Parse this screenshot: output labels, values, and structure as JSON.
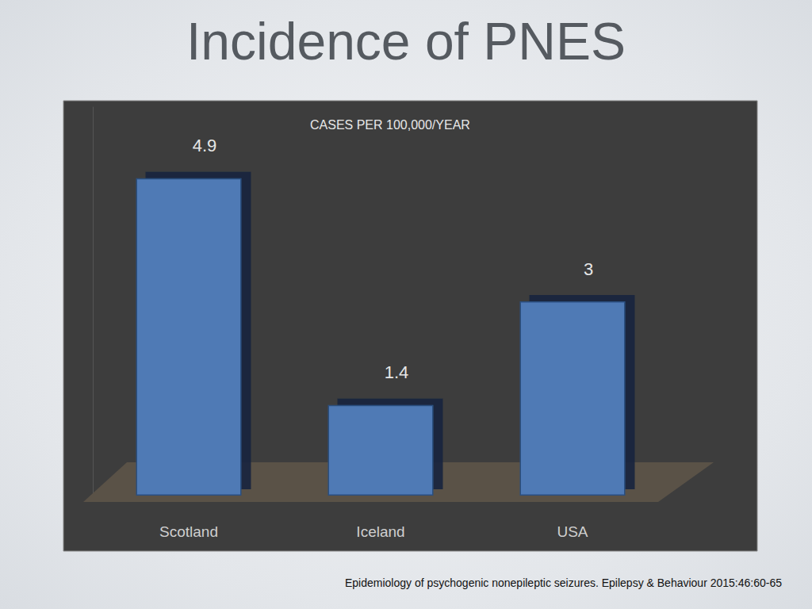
{
  "chart_data": {
    "type": "bar",
    "title": "Incidence of PNES",
    "subtitle": "CASES PER 100,000/YEAR",
    "annotations": [
      "Epidemiology of psychogenic nonepileptic seizures. Epilepsy & Behaviour 2015:46:60-65"
    ],
    "categories": [
      "Scotland",
      "Iceland",
      "USA"
    ],
    "values": [
      4.9,
      1.4,
      3
    ],
    "color": "#4f7ab5",
    "ylim": [
      0,
      6
    ],
    "data_labels": true,
    "tick_labels": "x",
    "grid": false
  }
}
